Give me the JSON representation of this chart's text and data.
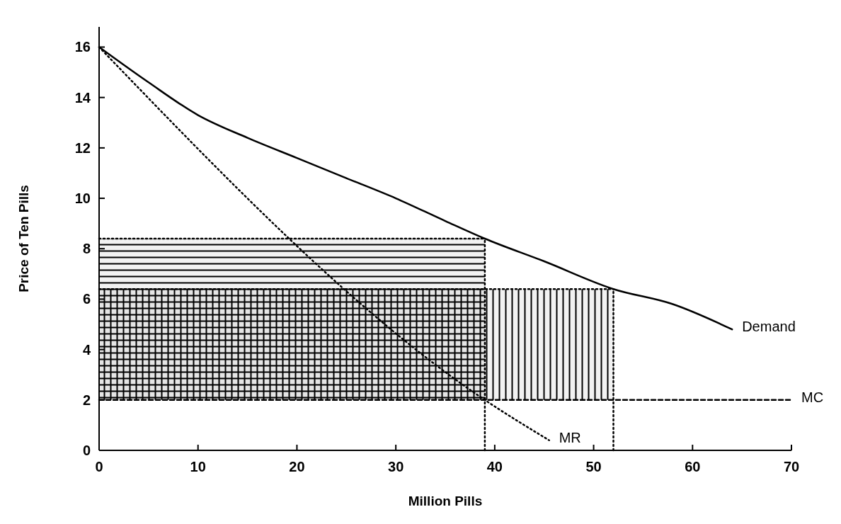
{
  "chart_data": {
    "type": "line",
    "xlabel": "Million Pills",
    "ylabel": "Price of Ten Pills",
    "xlim": [
      0,
      70
    ],
    "ylim": [
      0,
      16.8
    ],
    "xticks": [
      0,
      10,
      20,
      30,
      40,
      50,
      60,
      70
    ],
    "yticks": [
      0,
      2,
      4,
      6,
      8,
      10,
      12,
      14,
      16
    ],
    "series": [
      {
        "color": "#000000",
        "line_style": "dotted",
        "x": [
          0,
          39
        ],
        "values": [
          8.4,
          8.4
        ],
        "lower": [
          2,
          2
        ],
        "upper": [
          8.4,
          8.4
        ]
      },
      {
        "color": "#000000",
        "line_style": "dotted",
        "x": [
          0,
          52
        ],
        "values": [
          6.4,
          6.4
        ],
        "lower": [
          2,
          2
        ],
        "upper": [
          6.4,
          6.4
        ]
      },
      {
        "name": "Demand",
        "color": "#000000",
        "line_style": "solid",
        "x": [
          0,
          5,
          10,
          15,
          20,
          25,
          30,
          35,
          39,
          45,
          52,
          58,
          64
        ],
        "values": [
          16,
          14.6,
          13.3,
          12.4,
          11.6,
          10.8,
          10,
          9.1,
          8.4,
          7.5,
          6.4,
          5.8,
          4.8
        ]
      },
      {
        "name": "MR",
        "color": "#000000",
        "line_style": "dotted",
        "x": [
          0,
          39,
          45.5
        ],
        "values": [
          16,
          2,
          0.4
        ]
      },
      {
        "name": "MC",
        "color": "#000000",
        "line_style": "dashed",
        "x": [
          0,
          70
        ],
        "values": [
          2,
          2
        ]
      },
      {
        "color": "#000000",
        "line_style": "dotted",
        "x": [
          39,
          39
        ],
        "values": [
          0,
          8.4
        ]
      },
      {
        "color": "#000000",
        "line_style": "dotted",
        "x": [
          52,
          52
        ],
        "values": [
          0,
          6.4
        ]
      }
    ]
  }
}
